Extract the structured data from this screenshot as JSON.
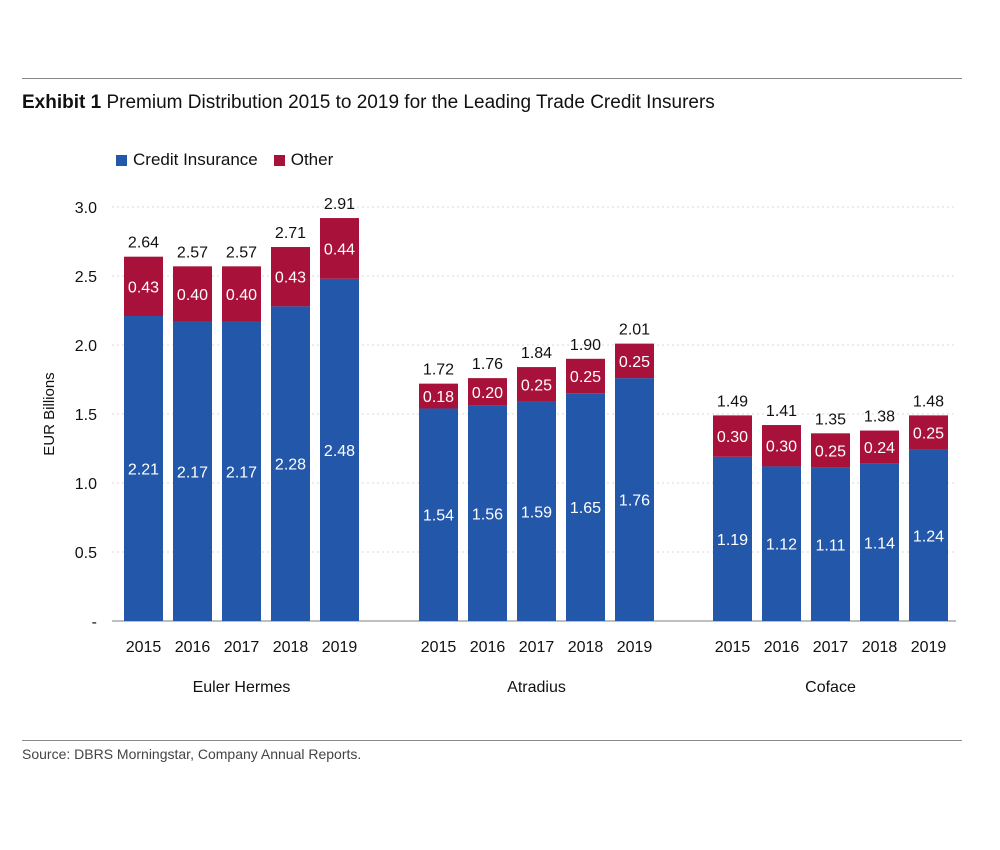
{
  "header": {
    "exhibit": "Exhibit 1",
    "title": "Premium Distribution 2015 to 2019 for the Leading Trade Credit Insurers"
  },
  "footer": {
    "source": "Source: DBRS Morningstar, Company Annual Reports."
  },
  "colors": {
    "credit": "#2257a9",
    "other": "#a8113a"
  },
  "chart_data": {
    "type": "bar",
    "stacked": true,
    "ylabel": "EUR Billions",
    "ylim": [
      0,
      3.0
    ],
    "yticks": [
      {
        "value": 0,
        "label": "-"
      },
      {
        "value": 0.5,
        "label": "0.5"
      },
      {
        "value": 1.0,
        "label": "1.0"
      },
      {
        "value": 1.5,
        "label": "1.5"
      },
      {
        "value": 2.0,
        "label": "2.0"
      },
      {
        "value": 2.5,
        "label": "2.5"
      },
      {
        "value": 3.0,
        "label": "3.0"
      }
    ],
    "grid": true,
    "legend": [
      {
        "name": "Credit Insurance",
        "color": "#2257a9"
      },
      {
        "name": "Other",
        "color": "#a8113a"
      }
    ],
    "groups": [
      {
        "name": "Euler Hermes",
        "bars": [
          {
            "year": "2015",
            "credit": 2.21,
            "credit_label": "2.21",
            "other": 0.43,
            "other_label": "0.43",
            "total_label": "2.64"
          },
          {
            "year": "2016",
            "credit": 2.17,
            "credit_label": "2.17",
            "other": 0.4,
            "other_label": "0.40",
            "total_label": "2.57"
          },
          {
            "year": "2017",
            "credit": 2.17,
            "credit_label": "2.17",
            "other": 0.4,
            "other_label": "0.40",
            "total_label": "2.57"
          },
          {
            "year": "2018",
            "credit": 2.28,
            "credit_label": "2.28",
            "other": 0.43,
            "other_label": "0.43",
            "total_label": "2.71"
          },
          {
            "year": "2019",
            "credit": 2.48,
            "credit_label": "2.48",
            "other": 0.44,
            "other_label": "0.44",
            "total_label": "2.91"
          }
        ]
      },
      {
        "name": "Atradius",
        "bars": [
          {
            "year": "2015",
            "credit": 1.54,
            "credit_label": "1.54",
            "other": 0.18,
            "other_label": "0.18",
            "total_label": "1.72"
          },
          {
            "year": "2016",
            "credit": 1.56,
            "credit_label": "1.56",
            "other": 0.2,
            "other_label": "0.20",
            "total_label": "1.76"
          },
          {
            "year": "2017",
            "credit": 1.59,
            "credit_label": "1.59",
            "other": 0.25,
            "other_label": "0.25",
            "total_label": "1.84"
          },
          {
            "year": "2018",
            "credit": 1.65,
            "credit_label": "1.65",
            "other": 0.25,
            "other_label": "0.25",
            "total_label": "1.90"
          },
          {
            "year": "2019",
            "credit": 1.76,
            "credit_label": "1.76",
            "other": 0.25,
            "other_label": "0.25",
            "total_label": "2.01"
          }
        ]
      },
      {
        "name": "Coface",
        "bars": [
          {
            "year": "2015",
            "credit": 1.19,
            "credit_label": "1.19",
            "other": 0.3,
            "other_label": "0.30",
            "total_label": "1.49"
          },
          {
            "year": "2016",
            "credit": 1.12,
            "credit_label": "1.12",
            "other": 0.3,
            "other_label": "0.30",
            "total_label": "1.41"
          },
          {
            "year": "2017",
            "credit": 1.11,
            "credit_label": "1.11",
            "other": 0.25,
            "other_label": "0.25",
            "total_label": "1.35"
          },
          {
            "year": "2018",
            "credit": 1.14,
            "credit_label": "1.14",
            "other": 0.24,
            "other_label": "0.24",
            "total_label": "1.38"
          },
          {
            "year": "2019",
            "credit": 1.24,
            "credit_label": "1.24",
            "other": 0.25,
            "other_label": "0.25",
            "total_label": "1.48"
          }
        ]
      }
    ]
  }
}
